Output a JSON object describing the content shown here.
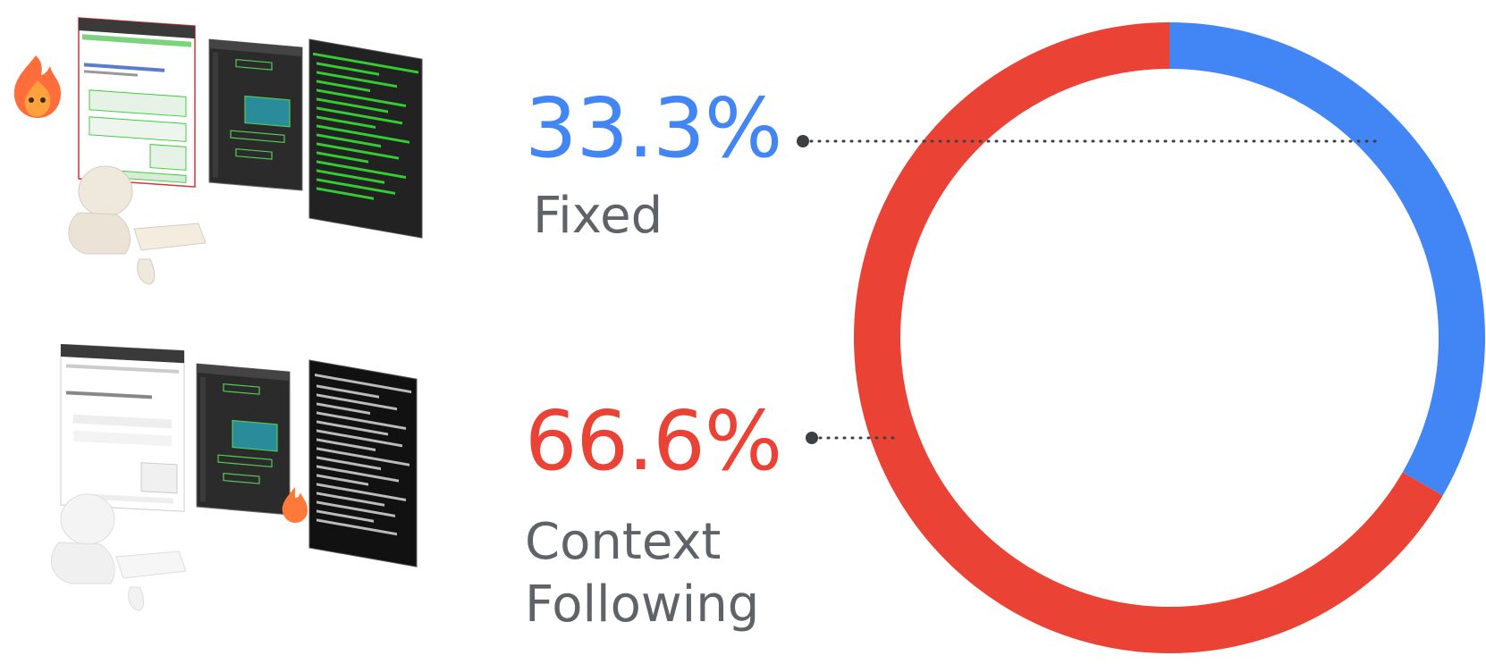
{
  "chart_data": {
    "type": "pie",
    "style": "donut",
    "title": "",
    "slices": [
      {
        "label": "Fixed",
        "value": 33.3,
        "display": "33.3%",
        "color": "#4285f4"
      },
      {
        "label": "Context Following",
        "label_lines": [
          "Context",
          "Following"
        ],
        "value": 66.6,
        "display": "66.6%",
        "color": "#ea4335"
      }
    ],
    "start_angle": "12 o'clock",
    "direction": "clockwise",
    "legend": "left"
  },
  "colors": {
    "fixed": "#4285f4",
    "context_following": "#ea4335",
    "label_gray": "#5f6368",
    "leader": "#3c4043"
  },
  "illustrations": [
    {
      "name": "person-at-three-screens-illustration",
      "highlight": "green",
      "mascot": "fire-mascot-icon"
    },
    {
      "name": "person-at-three-screens-illustration",
      "highlight": "gray",
      "mascot": "fire-mascot-icon"
    }
  ]
}
